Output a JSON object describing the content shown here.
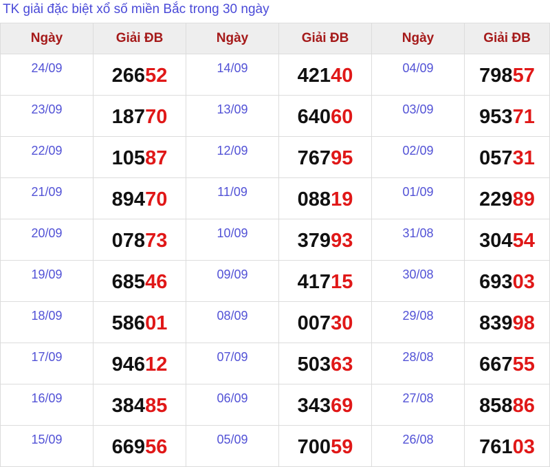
{
  "title": "TK giải đặc biệt xổ số miền Bắc trong 30 ngày",
  "headers": [
    "Ngày",
    "Giải ĐB",
    "Ngày",
    "Giải ĐB",
    "Ngày",
    "Giải ĐB"
  ],
  "colors": {
    "title": "#4a4ad8",
    "header": "#a51a1a",
    "date": "#5252d6",
    "tail_digits": "#e01818"
  },
  "rows": [
    [
      {
        "date": "24/09",
        "prize": "26652"
      },
      {
        "date": "14/09",
        "prize": "42140"
      },
      {
        "date": "04/09",
        "prize": "79857"
      }
    ],
    [
      {
        "date": "23/09",
        "prize": "18770"
      },
      {
        "date": "13/09",
        "prize": "64060"
      },
      {
        "date": "03/09",
        "prize": "95371"
      }
    ],
    [
      {
        "date": "22/09",
        "prize": "10587"
      },
      {
        "date": "12/09",
        "prize": "76795"
      },
      {
        "date": "02/09",
        "prize": "05731"
      }
    ],
    [
      {
        "date": "21/09",
        "prize": "89470"
      },
      {
        "date": "11/09",
        "prize": "08819"
      },
      {
        "date": "01/09",
        "prize": "22989"
      }
    ],
    [
      {
        "date": "20/09",
        "prize": "07873"
      },
      {
        "date": "10/09",
        "prize": "37993"
      },
      {
        "date": "31/08",
        "prize": "30454"
      }
    ],
    [
      {
        "date": "19/09",
        "prize": "68546"
      },
      {
        "date": "09/09",
        "prize": "41715"
      },
      {
        "date": "30/08",
        "prize": "69303"
      }
    ],
    [
      {
        "date": "18/09",
        "prize": "58601"
      },
      {
        "date": "08/09",
        "prize": "00730"
      },
      {
        "date": "29/08",
        "prize": "83998"
      }
    ],
    [
      {
        "date": "17/09",
        "prize": "94612"
      },
      {
        "date": "07/09",
        "prize": "50363"
      },
      {
        "date": "28/08",
        "prize": "66755"
      }
    ],
    [
      {
        "date": "16/09",
        "prize": "38485"
      },
      {
        "date": "06/09",
        "prize": "34369"
      },
      {
        "date": "27/08",
        "prize": "85886"
      }
    ],
    [
      {
        "date": "15/09",
        "prize": "66956"
      },
      {
        "date": "05/09",
        "prize": "70059"
      },
      {
        "date": "26/08",
        "prize": "76103"
      }
    ]
  ]
}
